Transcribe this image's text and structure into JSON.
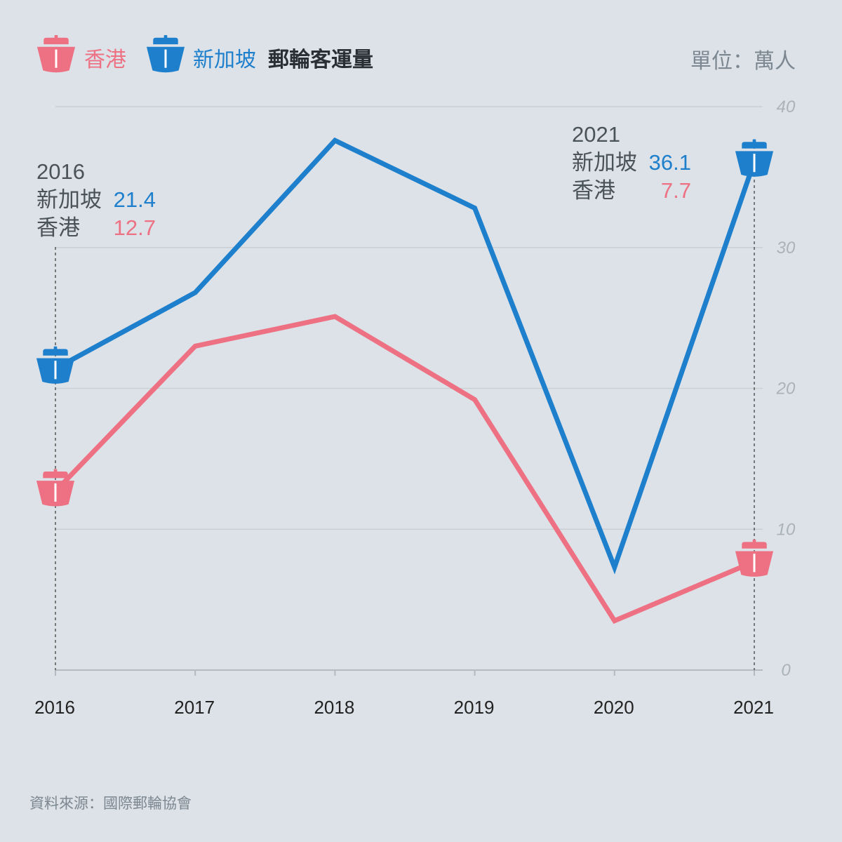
{
  "header": {
    "legend": [
      {
        "name": "香港",
        "color": "#ee7183",
        "icon": "ship-icon"
      },
      {
        "name": "新加坡",
        "color": "#1e7fcc",
        "icon": "ship-icon"
      }
    ],
    "title": "郵輪客運量",
    "unit": "單位：萬人"
  },
  "chart_data": {
    "type": "line",
    "title": "郵輪客運量",
    "xlabel": "",
    "ylabel": "單位：萬人",
    "categories": [
      "2016",
      "2017",
      "2018",
      "2019",
      "2020",
      "2021"
    ],
    "ylim": [
      0,
      40
    ],
    "yticks": [
      "0",
      "10",
      "20",
      "30",
      "40"
    ],
    "grid": true,
    "series": [
      {
        "name": "新加坡",
        "color": "#1e7fcc",
        "values": [
          21.4,
          26.8,
          37.6,
          32.8,
          7.3,
          36.1
        ]
      },
      {
        "name": "香港",
        "color": "#ee7183",
        "values": [
          12.7,
          23.0,
          25.1,
          19.2,
          3.5,
          7.7
        ]
      }
    ],
    "annotations": [
      {
        "year": "2016",
        "rows": [
          {
            "label": "新加坡",
            "value": "21.4",
            "color": "#1e7fcc"
          },
          {
            "label": "香港",
            "value": "12.7",
            "color": "#ee7183"
          }
        ]
      },
      {
        "year": "2021",
        "rows": [
          {
            "label": "新加坡",
            "value": "36.1",
            "color": "#1e7fcc"
          },
          {
            "label": "香港",
            "value": "7.7",
            "color": "#ee7183"
          }
        ]
      }
    ]
  },
  "source": "資料來源：國際郵輪協會"
}
